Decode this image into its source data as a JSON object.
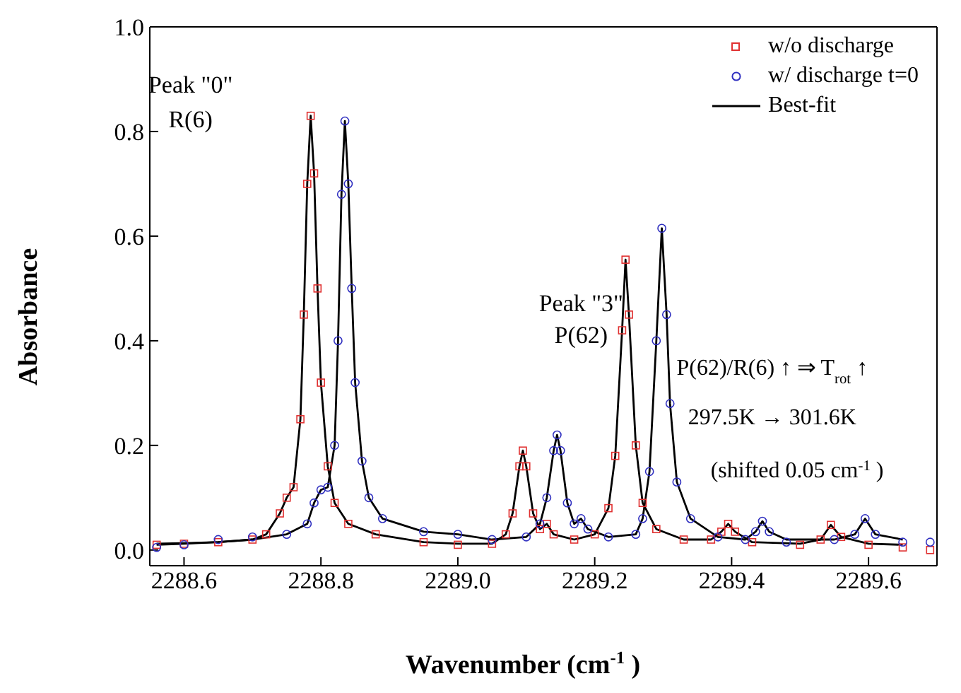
{
  "chart_data": {
    "type": "scatter",
    "xlabel": "Wavenumber (cm$^{-1}$)",
    "ylabel": "Absorbance",
    "xlim": [
      2288.55,
      2289.7
    ],
    "ylim": [
      -0.03,
      1.0
    ],
    "xticks": [
      2288.6,
      2288.8,
      {
        "value": 2289.0,
        "label": "2289.0"
      },
      2289.2,
      2289.4,
      2289.6
    ],
    "yticks": [
      {
        "value": 0,
        "label": "0.0"
      },
      0.2,
      0.4,
      0.6,
      0.8,
      {
        "value": 1.0,
        "label": "1.0"
      }
    ],
    "legend": "top right",
    "grid": false,
    "series": [
      {
        "name": "w/o discharge",
        "marker": "square",
        "color": "#e03030",
        "x": [
          2288.56,
          2288.6,
          2288.65,
          2288.7,
          2288.72,
          2288.74,
          2288.75,
          2288.76,
          2288.77,
          2288.775,
          2288.78,
          2288.785,
          2288.79,
          2288.795,
          2288.8,
          2288.81,
          2288.82,
          2288.84,
          2288.88,
          2288.95,
          2289.0,
          2289.05,
          2289.07,
          2289.08,
          2289.09,
          2289.095,
          2289.1,
          2289.11,
          2289.12,
          2289.13,
          2289.14,
          2289.17,
          2289.2,
          2289.22,
          2289.23,
          2289.24,
          2289.245,
          2289.25,
          2289.26,
          2289.27,
          2289.29,
          2289.33,
          2289.37,
          2289.385,
          2289.395,
          2289.405,
          2289.43,
          2289.5,
          2289.53,
          2289.545,
          2289.56,
          2289.6,
          2289.65,
          2289.69
        ],
        "values": [
          0.01,
          0.012,
          0.015,
          0.02,
          0.03,
          0.07,
          0.1,
          0.12,
          0.25,
          0.45,
          0.7,
          0.83,
          0.72,
          0.5,
          0.32,
          0.16,
          0.09,
          0.05,
          0.03,
          0.015,
          0.01,
          0.012,
          0.03,
          0.07,
          0.16,
          0.19,
          0.16,
          0.07,
          0.04,
          0.05,
          0.03,
          0.02,
          0.03,
          0.08,
          0.18,
          0.42,
          0.555,
          0.45,
          0.2,
          0.09,
          0.04,
          0.02,
          0.02,
          0.035,
          0.05,
          0.035,
          0.015,
          0.01,
          0.02,
          0.048,
          0.025,
          0.01,
          0.005,
          0.0
        ]
      },
      {
        "name": "w/ discharge t=0",
        "marker": "circle",
        "color": "#3030c0",
        "x": [
          2288.56,
          2288.6,
          2288.65,
          2288.7,
          2288.75,
          2288.78,
          2288.79,
          2288.8,
          2288.81,
          2288.82,
          2288.825,
          2288.83,
          2288.835,
          2288.84,
          2288.845,
          2288.85,
          2288.86,
          2288.87,
          2288.89,
          2288.95,
          2289.0,
          2289.05,
          2289.1,
          2289.12,
          2289.13,
          2289.14,
          2289.145,
          2289.15,
          2289.16,
          2289.17,
          2289.18,
          2289.19,
          2289.22,
          2289.26,
          2289.27,
          2289.28,
          2289.29,
          2289.298,
          2289.305,
          2289.31,
          2289.32,
          2289.34,
          2289.38,
          2289.42,
          2289.435,
          2289.445,
          2289.455,
          2289.48,
          2289.55,
          2289.58,
          2289.595,
          2289.61,
          2289.65,
          2289.69
        ],
        "values": [
          0.005,
          0.01,
          0.02,
          0.025,
          0.03,
          0.05,
          0.09,
          0.115,
          0.12,
          0.2,
          0.4,
          0.68,
          0.82,
          0.7,
          0.5,
          0.32,
          0.17,
          0.1,
          0.06,
          0.035,
          0.03,
          0.02,
          0.025,
          0.05,
          0.1,
          0.19,
          0.22,
          0.19,
          0.09,
          0.05,
          0.06,
          0.04,
          0.025,
          0.03,
          0.06,
          0.15,
          0.4,
          0.615,
          0.45,
          0.28,
          0.13,
          0.06,
          0.025,
          0.02,
          0.035,
          0.055,
          0.035,
          0.015,
          0.02,
          0.03,
          0.06,
          0.03,
          0.015,
          0.015
        ]
      },
      {
        "name": "Best-fit",
        "type": "line",
        "color": "#000000",
        "x": [
          2288.56,
          2288.6,
          2288.65,
          2288.7,
          2288.72,
          2288.74,
          2288.75,
          2288.76,
          2288.77,
          2288.775,
          2288.78,
          2288.785,
          2288.79,
          2288.795,
          2288.8,
          2288.81,
          2288.82,
          2288.84,
          2288.88,
          2288.95,
          2289.0,
          2289.05,
          2289.07,
          2289.08,
          2289.09,
          2289.095,
          2289.1,
          2289.11,
          2289.12,
          2289.13,
          2289.14,
          2289.17,
          2289.2,
          2289.22,
          2289.23,
          2289.24,
          2289.245,
          2289.25,
          2289.26,
          2289.27,
          2289.29,
          2289.33,
          2289.37,
          2289.385,
          2289.395,
          2289.405,
          2289.43,
          2289.5,
          2289.53,
          2289.545,
          2289.56,
          2289.6,
          2289.65
        ],
        "values": [
          0.012,
          0.013,
          0.015,
          0.02,
          0.03,
          0.07,
          0.1,
          0.12,
          0.25,
          0.45,
          0.7,
          0.83,
          0.72,
          0.5,
          0.32,
          0.16,
          0.09,
          0.05,
          0.03,
          0.015,
          0.012,
          0.012,
          0.03,
          0.07,
          0.16,
          0.19,
          0.16,
          0.07,
          0.04,
          0.05,
          0.03,
          0.02,
          0.03,
          0.08,
          0.18,
          0.42,
          0.555,
          0.45,
          0.2,
          0.09,
          0.04,
          0.02,
          0.02,
          0.035,
          0.05,
          0.035,
          0.015,
          0.012,
          0.02,
          0.048,
          0.025,
          0.012,
          0.01
        ]
      },
      {
        "type": "line",
        "color": "#000000",
        "x": [
          2288.56,
          2288.6,
          2288.65,
          2288.7,
          2288.75,
          2288.78,
          2288.79,
          2288.8,
          2288.81,
          2288.82,
          2288.825,
          2288.83,
          2288.835,
          2288.84,
          2288.845,
          2288.85,
          2288.86,
          2288.87,
          2288.89,
          2288.95,
          2289.0,
          2289.05,
          2289.1,
          2289.12,
          2289.13,
          2289.14,
          2289.145,
          2289.15,
          2289.16,
          2289.17,
          2289.18,
          2289.19,
          2289.22,
          2289.26,
          2289.27,
          2289.28,
          2289.29,
          2289.298,
          2289.305,
          2289.31,
          2289.32,
          2289.34,
          2289.38,
          2289.42,
          2289.435,
          2289.445,
          2289.455,
          2289.48,
          2289.55,
          2289.58,
          2289.595,
          2289.61,
          2289.65
        ],
        "values": [
          0.01,
          0.012,
          0.015,
          0.02,
          0.03,
          0.05,
          0.09,
          0.115,
          0.12,
          0.2,
          0.4,
          0.68,
          0.82,
          0.7,
          0.5,
          0.32,
          0.17,
          0.1,
          0.06,
          0.035,
          0.03,
          0.02,
          0.025,
          0.05,
          0.1,
          0.19,
          0.22,
          0.19,
          0.09,
          0.05,
          0.06,
          0.04,
          0.025,
          0.03,
          0.06,
          0.15,
          0.4,
          0.615,
          0.45,
          0.28,
          0.13,
          0.06,
          0.025,
          0.02,
          0.035,
          0.055,
          0.035,
          0.02,
          0.02,
          0.03,
          0.06,
          0.03,
          0.02
        ]
      }
    ],
    "annotations": [
      "Peak \"0\"",
      "R(6)",
      "Peak \"3\"",
      "P(62)",
      "P(62)/R(6) ↑ ⇒ T$_{rot}$ ↑",
      "297.5K → 301.6K",
      "(shifted 0.05 cm$^{-1}$)"
    ]
  }
}
